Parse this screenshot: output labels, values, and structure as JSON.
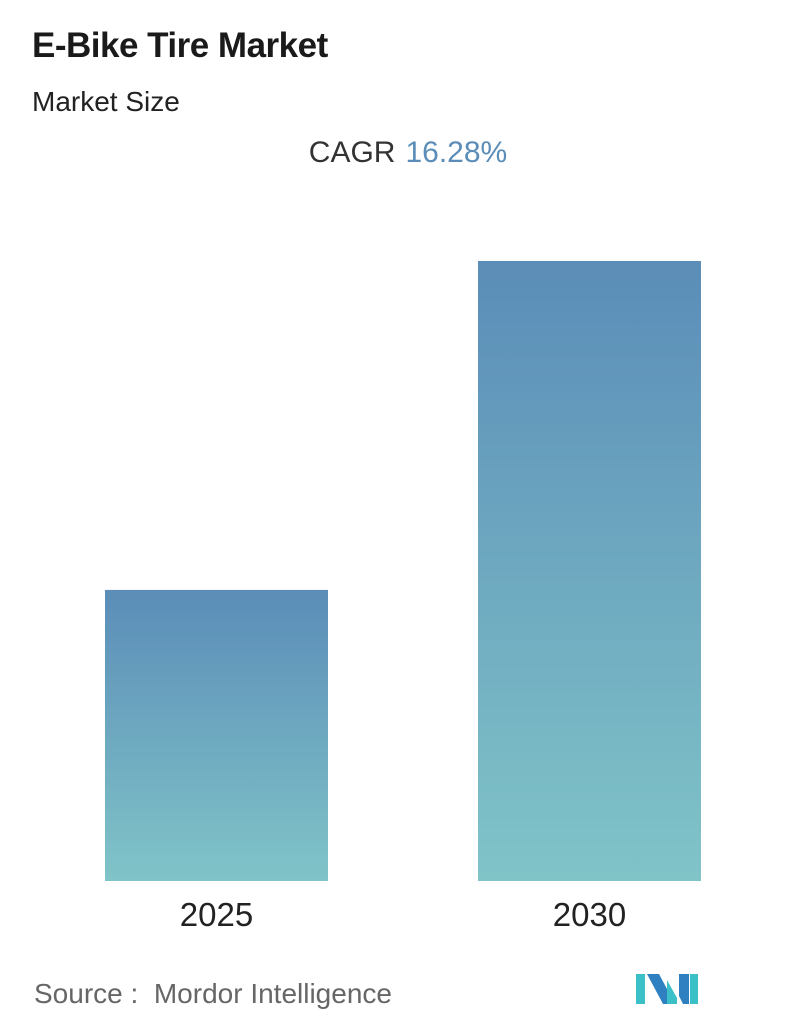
{
  "title": "E-Bike Tire Market",
  "subtitle": "Market Size",
  "cagr": {
    "label": "CAGR",
    "value": "16.28%"
  },
  "chart_data": {
    "type": "bar",
    "categories": [
      "2025",
      "2030"
    ],
    "values": [
      1.0,
      2.13
    ],
    "value_note_unit": "relative (no axis values shown)",
    "title": "",
    "xlabel": "",
    "ylabel": "",
    "grid": false,
    "legend": "none",
    "colors": {
      "bar_top": "#5b8db8",
      "bar_bottom": "#80c4c8"
    }
  },
  "source": {
    "label": "Source :",
    "name": "Mordor Intelligence"
  },
  "logo": {
    "text": "Mordor Intelligence",
    "colors": [
      "#2f80c0",
      "#3cc0c8"
    ]
  }
}
